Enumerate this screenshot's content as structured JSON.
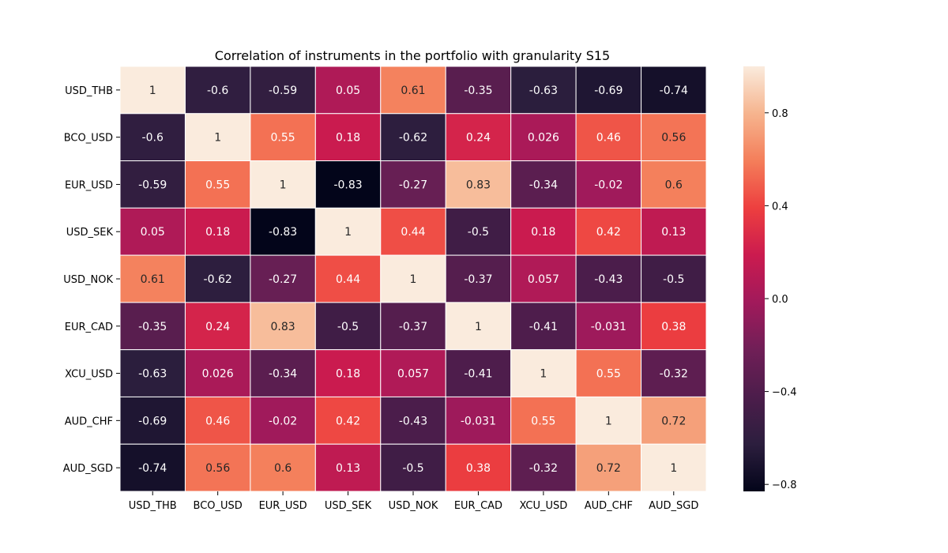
{
  "chart_data": {
    "type": "heatmap",
    "title": "Correlation of instruments in the portfolio with granularity S15",
    "xlabel": "",
    "ylabel": "",
    "rows": [
      "USD_THB",
      "BCO_USD",
      "EUR_USD",
      "USD_SEK",
      "USD_NOK",
      "EUR_CAD",
      "XCU_USD",
      "AUD_CHF",
      "AUD_SGD"
    ],
    "columns": [
      "USD_THB",
      "BCO_USD",
      "EUR_USD",
      "USD_SEK",
      "USD_NOK",
      "EUR_CAD",
      "XCU_USD",
      "AUD_CHF",
      "AUD_SGD"
    ],
    "values": [
      [
        1,
        -0.6,
        -0.59,
        0.05,
        0.61,
        -0.35,
        -0.63,
        -0.69,
        -0.74
      ],
      [
        -0.6,
        1,
        0.55,
        0.18,
        -0.62,
        0.24,
        0.026,
        0.46,
        0.56
      ],
      [
        -0.59,
        0.55,
        1,
        -0.83,
        -0.27,
        0.83,
        -0.34,
        -0.02,
        0.6
      ],
      [
        0.05,
        0.18,
        -0.83,
        1,
        0.44,
        -0.5,
        0.18,
        0.42,
        0.13
      ],
      [
        0.61,
        -0.62,
        -0.27,
        0.44,
        1,
        -0.37,
        0.057,
        -0.43,
        -0.5
      ],
      [
        -0.35,
        0.24,
        0.83,
        -0.5,
        -0.37,
        1,
        -0.41,
        -0.031,
        0.38
      ],
      [
        -0.63,
        0.026,
        -0.34,
        0.18,
        0.057,
        -0.41,
        1,
        0.55,
        -0.32
      ],
      [
        -0.69,
        0.46,
        -0.02,
        0.42,
        -0.43,
        -0.031,
        0.55,
        1,
        0.72
      ],
      [
        -0.74,
        0.56,
        0.6,
        0.13,
        -0.5,
        0.38,
        -0.32,
        0.72,
        1
      ]
    ],
    "annotations": [
      [
        "1",
        "-0.6",
        "-0.59",
        "0.05",
        "0.61",
        "-0.35",
        "-0.63",
        "-0.69",
        "-0.74"
      ],
      [
        "-0.6",
        "1",
        "0.55",
        "0.18",
        "-0.62",
        "0.24",
        "0.026",
        "0.46",
        "0.56"
      ],
      [
        "-0.59",
        "0.55",
        "1",
        "-0.83",
        "-0.27",
        "0.83",
        "-0.34",
        "-0.02",
        "0.6"
      ],
      [
        "0.05",
        "0.18",
        "-0.83",
        "1",
        "0.44",
        "-0.5",
        "0.18",
        "0.42",
        "0.13"
      ],
      [
        "0.61",
        "-0.62",
        "-0.27",
        "0.44",
        "1",
        "-0.37",
        "0.057",
        "-0.43",
        "-0.5"
      ],
      [
        "-0.35",
        "0.24",
        "0.83",
        "-0.5",
        "-0.37",
        "1",
        "-0.41",
        "-0.031",
        "0.38"
      ],
      [
        "-0.63",
        "0.026",
        "-0.34",
        "0.18",
        "0.057",
        "-0.41",
        "1",
        "0.55",
        "-0.32"
      ],
      [
        "-0.69",
        "0.46",
        "-0.02",
        "0.42",
        "-0.43",
        "-0.031",
        "0.55",
        "1",
        "0.72"
      ],
      [
        "-0.74",
        "0.56",
        "0.6",
        "0.13",
        "-0.5",
        "0.38",
        "-0.32",
        "0.72",
        "1"
      ]
    ],
    "colormap": "rocket",
    "vmin": -0.83,
    "vmax": 1,
    "colorbar_ticks": [
      0.8,
      0.4,
      0.0,
      -0.4,
      -0.8
    ],
    "colorbar_tick_labels": [
      "0.8",
      "0.4",
      "0.0",
      "−0.4",
      "−0.8"
    ],
    "colormap_stops": [
      "#03051a",
      "#2c1e3e",
      "#4c1d4b",
      "#701f57",
      "#a11a5b",
      "#cb1b4f",
      "#ed3f3f",
      "#f47e5a",
      "#f6b48e",
      "#faebdd"
    ],
    "cell_border_color": "#ffffff",
    "light_text_color": "#ffffff",
    "dark_text_color": "#262626",
    "grid": false,
    "legend": "colorbar-right"
  }
}
